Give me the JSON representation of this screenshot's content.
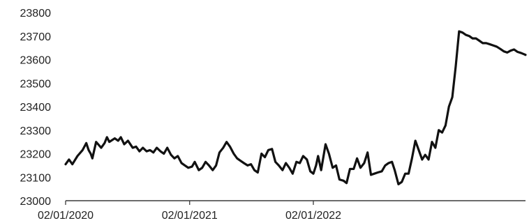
{
  "chart_data": {
    "type": "line",
    "title": "",
    "xlabel": "",
    "ylabel": "",
    "ylim": [
      23000,
      23800
    ],
    "yticks": [
      23000,
      23100,
      23200,
      23300,
      23400,
      23500,
      23600,
      23700,
      23800
    ],
    "xlim": [
      "2020-01-02",
      "2023-09-20"
    ],
    "xticks": [
      {
        "date": "2020-01-02",
        "label": "02/01/2020"
      },
      {
        "date": "2021-01-02",
        "label": "02/01/2021"
      },
      {
        "date": "2022-01-02",
        "label": "02/01/2022"
      }
    ],
    "grid": false,
    "legend": "none",
    "colors": {
      "line": "#111111",
      "axis": "#3a3a3a",
      "text": "#222222",
      "background": "#ffffff"
    },
    "series": [
      {
        "x": [
          "2020-01-02",
          "2020-01-12",
          "2020-01-22",
          "2020-02-06",
          "2020-02-21",
          "2020-03-03",
          "2020-03-10",
          "2020-03-16",
          "2020-03-21",
          "2020-04-01",
          "2020-04-16",
          "2020-04-26",
          "2020-05-03",
          "2020-05-10",
          "2020-05-26",
          "2020-06-05",
          "2020-06-13",
          "2020-06-23",
          "2020-07-04",
          "2020-07-18",
          "2020-07-28",
          "2020-08-07",
          "2020-08-17",
          "2020-08-28",
          "2020-09-07",
          "2020-09-17",
          "2020-09-27",
          "2020-10-08",
          "2020-10-18",
          "2020-10-28",
          "2020-11-08",
          "2020-11-18",
          "2020-11-28",
          "2020-12-09",
          "2020-12-19",
          "2020-12-29",
          "2021-01-09",
          "2021-01-17",
          "2021-01-29",
          "2021-02-08",
          "2021-02-18",
          "2021-02-28",
          "2021-03-11",
          "2021-03-21",
          "2021-03-31",
          "2021-04-11",
          "2021-04-21",
          "2021-05-01",
          "2021-05-12",
          "2021-05-22",
          "2021-06-01",
          "2021-06-11",
          "2021-06-22",
          "2021-07-02",
          "2021-07-12",
          "2021-07-22",
          "2021-08-02",
          "2021-08-12",
          "2021-08-22",
          "2021-09-02",
          "2021-09-12",
          "2021-09-22",
          "2021-10-03",
          "2021-10-13",
          "2021-10-23",
          "2021-11-02",
          "2021-11-13",
          "2021-11-23",
          "2021-12-03",
          "2021-12-14",
          "2021-12-24",
          "2022-01-02",
          "2022-01-10",
          "2022-01-16",
          "2022-01-25",
          "2022-02-07",
          "2022-02-17",
          "2022-02-28",
          "2022-03-10",
          "2022-03-20",
          "2022-04-01",
          "2022-04-10",
          "2022-04-20",
          "2022-05-01",
          "2022-05-11",
          "2022-05-21",
          "2022-06-01",
          "2022-06-11",
          "2022-06-21",
          "2022-07-01",
          "2022-07-11",
          "2022-07-23",
          "2022-08-02",
          "2022-08-12",
          "2022-08-22",
          "2022-08-30",
          "2022-09-10",
          "2022-09-20",
          "2022-09-30",
          "2022-10-10",
          "2022-10-20",
          "2022-10-30",
          "2022-11-09",
          "2022-11-19",
          "2022-11-28",
          "2022-12-08",
          "2022-12-18",
          "2022-12-28",
          "2023-01-07",
          "2023-01-17",
          "2023-01-27",
          "2023-02-06",
          "2023-02-16",
          "2023-02-26",
          "2023-03-08",
          "2023-03-18",
          "2023-03-28",
          "2023-04-07",
          "2023-04-17",
          "2023-04-27",
          "2023-05-07",
          "2023-05-17",
          "2023-05-27",
          "2023-06-07",
          "2023-06-17",
          "2023-06-27",
          "2023-07-08",
          "2023-07-18",
          "2023-07-28",
          "2023-08-07",
          "2023-08-17",
          "2023-08-27",
          "2023-09-07",
          "2023-09-17",
          "2023-09-20"
        ],
        "y": [
          23155,
          23175,
          23155,
          23190,
          23215,
          23245,
          23215,
          23200,
          23180,
          23250,
          23225,
          23245,
          23270,
          23250,
          23265,
          23255,
          23270,
          23240,
          23255,
          23225,
          23230,
          23210,
          23225,
          23210,
          23215,
          23205,
          23225,
          23210,
          23200,
          23225,
          23195,
          23180,
          23190,
          23160,
          23150,
          23140,
          23145,
          23165,
          23130,
          23140,
          23165,
          23150,
          23130,
          23150,
          23205,
          23225,
          23250,
          23230,
          23200,
          23180,
          23170,
          23160,
          23150,
          23155,
          23130,
          23120,
          23200,
          23185,
          23215,
          23220,
          23165,
          23150,
          23130,
          23160,
          23140,
          23115,
          23165,
          23160,
          23190,
          23175,
          23125,
          23115,
          23150,
          23190,
          23130,
          23240,
          23200,
          23140,
          23150,
          23090,
          23085,
          23075,
          23135,
          23135,
          23180,
          23140,
          23160,
          23205,
          23110,
          23115,
          23120,
          23125,
          23150,
          23160,
          23165,
          23130,
          23070,
          23080,
          23115,
          23115,
          23180,
          23255,
          23215,
          23175,
          23195,
          23175,
          23250,
          23225,
          23300,
          23290,
          23320,
          23400,
          23440,
          23570,
          23720,
          23715,
          23705,
          23700,
          23690,
          23690,
          23680,
          23670,
          23670,
          23665,
          23660,
          23655,
          23645,
          23635,
          23630,
          23638,
          23643,
          23633,
          23628,
          23622,
          23620
        ]
      }
    ]
  }
}
